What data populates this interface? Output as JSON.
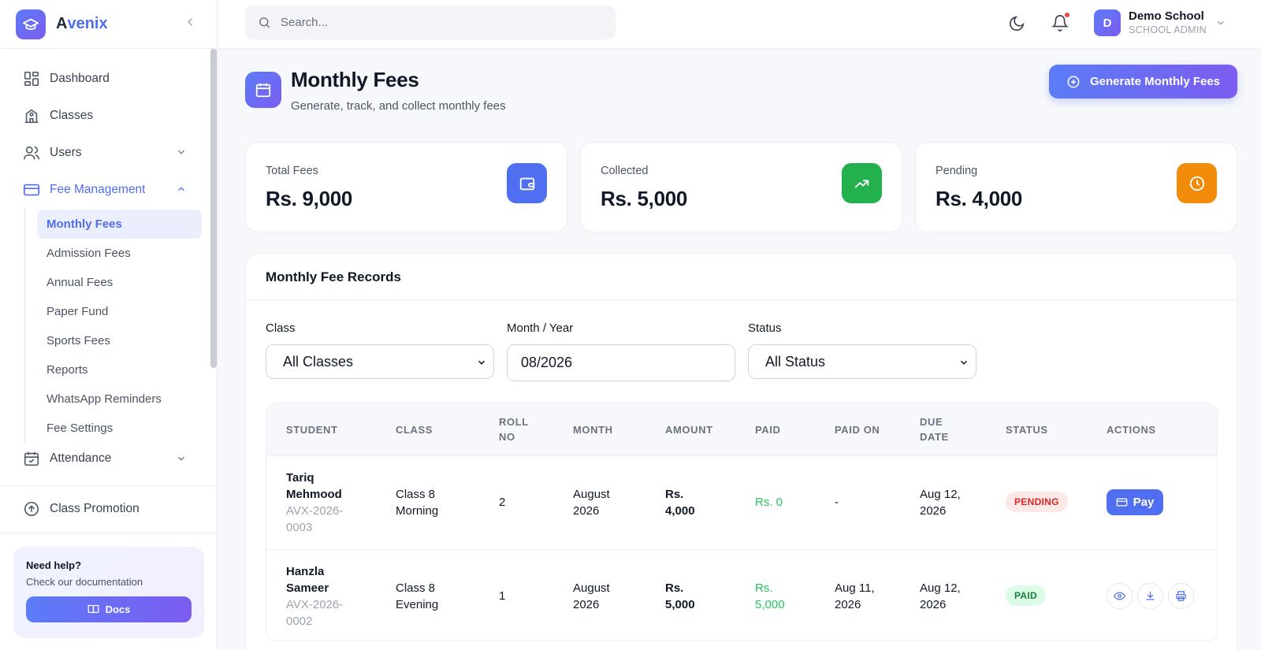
{
  "brand": {
    "name_first": "A",
    "name_rest": "venix"
  },
  "sidebar": {
    "items": [
      {
        "label": "Dashboard"
      },
      {
        "label": "Classes"
      },
      {
        "label": "Users"
      },
      {
        "label": "Fee Management"
      },
      {
        "label": "Attendance"
      },
      {
        "label": "Class Promotion"
      }
    ],
    "fee_sub": [
      {
        "label": "Monthly Fees"
      },
      {
        "label": "Admission Fees"
      },
      {
        "label": "Annual Fees"
      },
      {
        "label": "Paper Fund"
      },
      {
        "label": "Sports Fees"
      },
      {
        "label": "Reports"
      },
      {
        "label": "WhatsApp Reminders"
      },
      {
        "label": "Fee Settings"
      }
    ],
    "help": {
      "title": "Need help?",
      "subtitle": "Check our documentation",
      "button": "Docs"
    }
  },
  "topbar": {
    "search_placeholder": "Search...",
    "user": {
      "initial": "D",
      "name": "Demo School",
      "role": "SCHOOL ADMIN"
    }
  },
  "header": {
    "title": "Monthly Fees",
    "subtitle": "Generate, track, and collect monthly fees",
    "generate_button": "Generate Monthly Fees"
  },
  "stats": [
    {
      "label": "Total Fees",
      "value": "Rs. 9,000",
      "color": "#4f6ef0"
    },
    {
      "label": "Collected",
      "value": "Rs. 5,000",
      "color": "#22b14c"
    },
    {
      "label": "Pending",
      "value": "Rs. 4,000",
      "color": "#f08c0a"
    }
  ],
  "records": {
    "title": "Monthly Fee Records",
    "filters": {
      "class": {
        "label": "Class",
        "value": "All Classes"
      },
      "month": {
        "label": "Month / Year",
        "value": "08/2026"
      },
      "status": {
        "label": "Status",
        "value": "All Status"
      }
    },
    "columns": {
      "student": "STUDENT",
      "class": "CLASS",
      "roll_1": "ROLL",
      "roll_2": "NO",
      "month": "MONTH",
      "amount": "AMOUNT",
      "paid": "PAID",
      "paid_on": "PAID ON",
      "due_1": "DUE",
      "due_2": "DATE",
      "status": "STATUS",
      "actions": "ACTIONS"
    },
    "rows": [
      {
        "name_1": "Tariq",
        "name_2": "Mehmood",
        "id_1": "AVX-2026-",
        "id_2": "0003",
        "class_1": "Class 8",
        "class_2": "Morning",
        "roll": "2",
        "month_1": "August",
        "month_2": "2026",
        "amount_1": "Rs.",
        "amount_2": "4,000",
        "paid_1": "Rs. 0",
        "paid_2": "",
        "paid_on_1": "-",
        "paid_on_2": "",
        "due_1": "Aug 12,",
        "due_2": "2026",
        "status": "PENDING",
        "action": "Pay"
      },
      {
        "name_1": "Hanzla",
        "name_2": "Sameer",
        "id_1": "AVX-2026-",
        "id_2": "0002",
        "class_1": "Class 8",
        "class_2": "Evening",
        "roll": "1",
        "month_1": "August",
        "month_2": "2026",
        "amount_1": "Rs.",
        "amount_2": "5,000",
        "paid_1": "Rs.",
        "paid_2": "5,000",
        "paid_on_1": "Aug 11,",
        "paid_on_2": "2026",
        "due_1": "Aug 12,",
        "due_2": "2026",
        "status": "PAID"
      }
    ]
  },
  "icons": {
    "logo": "graduation-cap-icon",
    "search": "search-icon",
    "theme": "moon-icon",
    "notifications": "bell-icon"
  }
}
